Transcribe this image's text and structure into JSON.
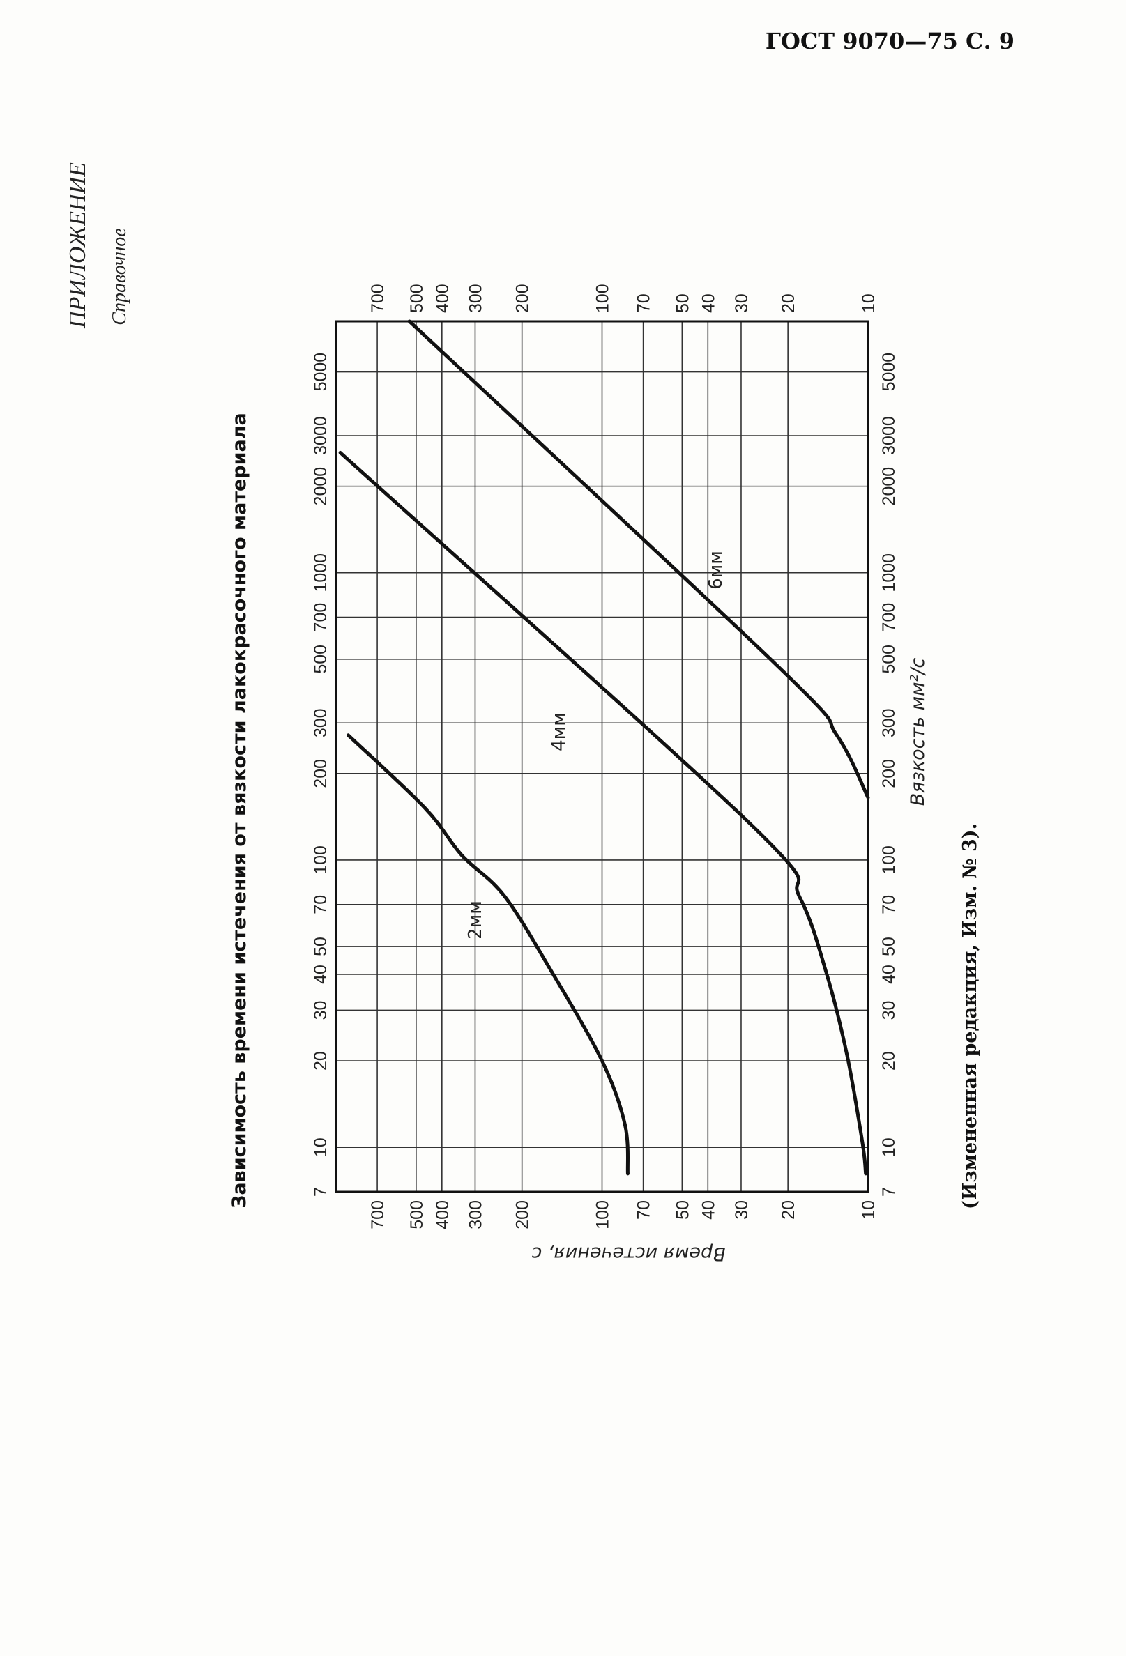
{
  "header": "ГОСТ 9070—75 С. 9",
  "appendix": {
    "title": "ПРИЛОЖЕНИЕ",
    "note": "Справочное"
  },
  "chart_data": {
    "type": "line",
    "title": "Зависимость времени истечения от вязкости лакокрасочного материала",
    "xlabel": "Вязкость мм²/с",
    "ylabel": "Время истечения, с",
    "xscale": "log",
    "yscale": "log",
    "xlim": [
      7,
      7500
    ],
    "ylim": [
      10,
      1000
    ],
    "xticks": [
      7,
      10,
      20,
      30,
      40,
      50,
      70,
      100,
      200,
      300,
      500,
      700,
      1000,
      2000,
      3000,
      5000
    ],
    "yticks": [
      10,
      20,
      30,
      40,
      50,
      70,
      100,
      200,
      300,
      400,
      500,
      700
    ],
    "grid": true,
    "series": [
      {
        "name": "2мм",
        "color": "#111111",
        "x": [
          8.1,
          12,
          20,
          41,
          75,
          104,
          152,
          272
        ],
        "values": [
          80,
          82,
          100,
          155,
          233,
          337,
          464,
          900
        ]
      },
      {
        "name": "4мм",
        "color": "#111111",
        "x": [
          8.1,
          10.4,
          21,
          41,
          74.5,
          134,
          2618
        ],
        "values": [
          10.2,
          10.5,
          12,
          14.4,
          18.1,
          27.8,
          964
        ]
      },
      {
        "name": "6мм",
        "color": "#111111",
        "x": [
          165,
          272,
          470,
          7500
        ],
        "values": [
          10,
          13.1,
          21.7,
          530
        ]
      }
    ]
  },
  "footnote": "(Измененная редакция, Изм. № 3)."
}
